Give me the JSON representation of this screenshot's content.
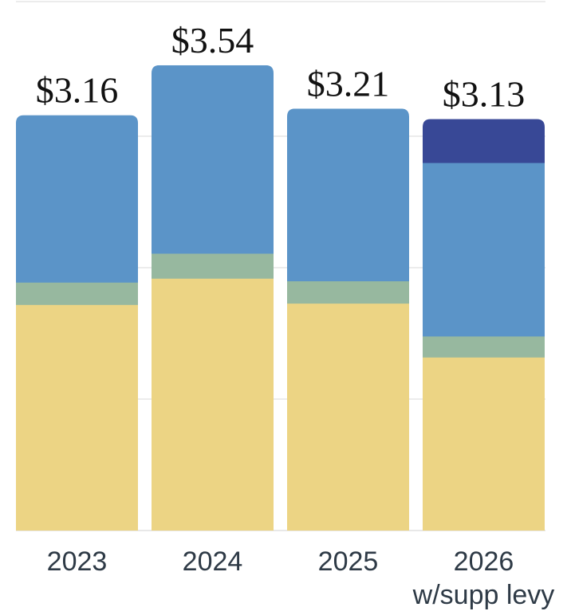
{
  "chart_data": {
    "type": "bar",
    "stacked": true,
    "categories": [
      "2023",
      "2024",
      "2025",
      "2026\nw/supp levy"
    ],
    "series": [
      {
        "color": "#ecd484",
        "values": [
          1.72,
          1.92,
          1.73,
          1.32
        ]
      },
      {
        "color": "#97b89f",
        "values": [
          0.17,
          0.19,
          0.17,
          0.16
        ]
      },
      {
        "color": "#5b94c8",
        "values": [
          1.27,
          1.43,
          1.31,
          1.32
        ]
      },
      {
        "color": "#384896",
        "values": [
          0,
          0,
          0,
          0.33
        ]
      }
    ],
    "totals": [
      "$3.16",
      "$3.54",
      "$3.21",
      "$3.13"
    ],
    "ylim": [
      0,
      3.6
    ],
    "grid": true,
    "legend": "none"
  }
}
